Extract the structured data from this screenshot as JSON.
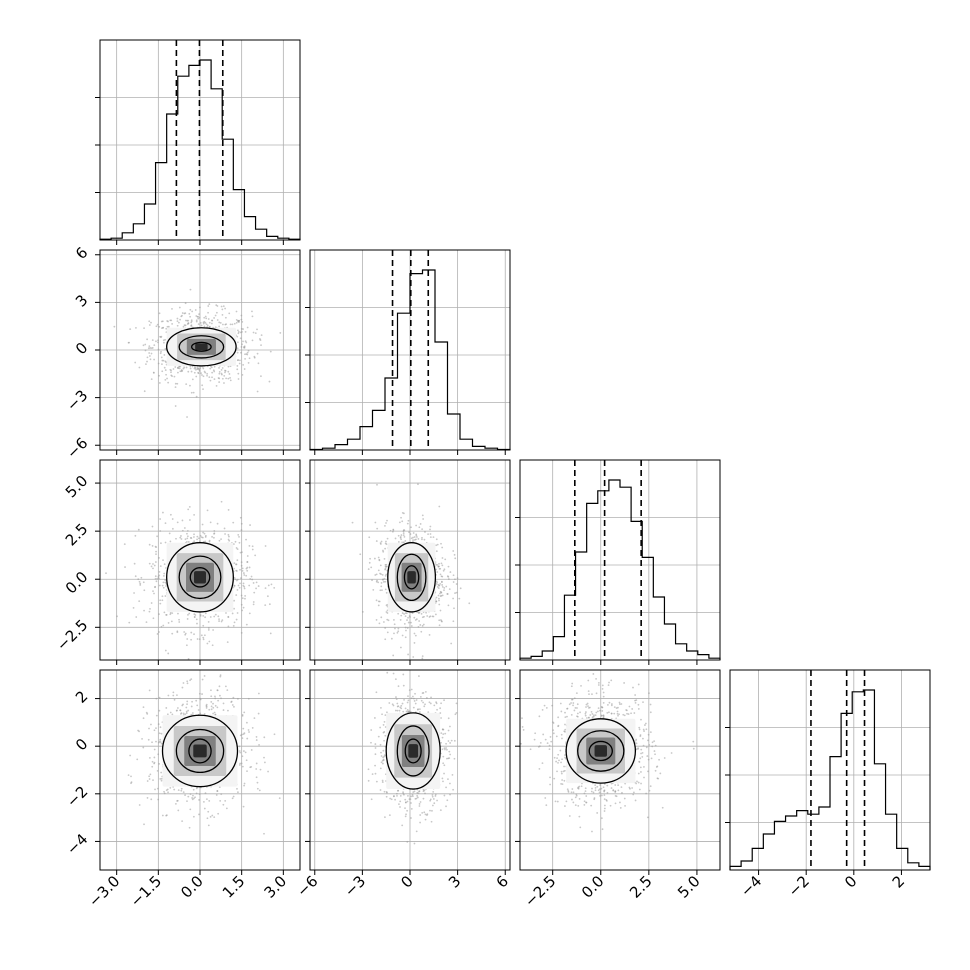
{
  "chart_data": {
    "type": "corner",
    "grid": true,
    "colors": {
      "line": "#000000",
      "grid": "#b0b0b0",
      "scatter": "#9a9a9a",
      "background": "#ffffff"
    },
    "params": [
      {
        "range": [
          -3.6,
          3.6
        ],
        "ticks": [
          -3.0,
          -1.5,
          0.0,
          1.5,
          3.0
        ],
        "tick_labels": [
          "−3.0",
          "−1.5",
          "0.0",
          "1.5",
          "3.0"
        ],
        "quantiles": [
          -0.85,
          -0.02,
          0.82
        ],
        "hist": [
          0.004,
          0.01,
          0.04,
          0.09,
          0.2,
          0.43,
          0.7,
          0.91,
          0.97,
          1.0,
          0.84,
          0.56,
          0.28,
          0.13,
          0.06,
          0.02,
          0.01,
          0.004
        ],
        "center": 0.0,
        "sd": 0.9
      },
      {
        "range": [
          -6.3,
          6.3
        ],
        "ticks": [
          -6,
          -3,
          0,
          3,
          6
        ],
        "tick_labels": [
          "−6",
          "−3",
          "0",
          "3",
          "6"
        ],
        "quantiles": [
          -1.1,
          0.05,
          1.15
        ],
        "hist": [
          0.003,
          0.01,
          0.03,
          0.06,
          0.13,
          0.22,
          0.4,
          0.76,
          0.98,
          1.0,
          0.6,
          0.2,
          0.06,
          0.02,
          0.01,
          0.003
        ],
        "center": 0.05,
        "sd": 1.1
      },
      {
        "range": [
          -4.2,
          6.2
        ],
        "ticks": [
          -2.5,
          0.0,
          2.5,
          5.0
        ],
        "tick_labels": [
          "−2.5",
          "0.0",
          "2.5",
          "5.0"
        ],
        "quantiles": [
          -1.35,
          0.2,
          2.1
        ],
        "hist": [
          0.01,
          0.02,
          0.05,
          0.13,
          0.36,
          0.6,
          0.87,
          0.94,
          1.0,
          0.96,
          0.77,
          0.57,
          0.35,
          0.2,
          0.09,
          0.05,
          0.03,
          0.01
        ],
        "center": 0.2,
        "sd": 1.35
      },
      {
        "range": [
          -5.2,
          3.2
        ],
        "ticks": [
          -4,
          -2,
          0,
          2
        ],
        "tick_labels": [
          "−4",
          "−2",
          "0",
          "2"
        ],
        "quantiles": [
          -1.8,
          -0.3,
          0.45
        ],
        "hist": [
          0.02,
          0.05,
          0.12,
          0.2,
          0.27,
          0.3,
          0.33,
          0.31,
          0.35,
          0.63,
          0.87,
          0.99,
          1.0,
          0.59,
          0.31,
          0.12,
          0.04,
          0.02
        ],
        "center": -0.3,
        "sd": 1.15
      }
    ],
    "panels_2d": [
      {
        "row": 1,
        "col": 0,
        "center": [
          0.05,
          0.2
        ],
        "radii": [
          [
            0.35,
            0.28
          ],
          [
            0.8,
            0.7
          ],
          [
            1.25,
            1.2
          ]
        ]
      },
      {
        "row": 2,
        "col": 0,
        "center": [
          0.0,
          0.1
        ],
        "radii": [
          [
            0.35,
            0.5
          ],
          [
            0.75,
            1.1
          ],
          [
            1.2,
            1.8
          ]
        ]
      },
      {
        "row": 2,
        "col": 1,
        "center": [
          0.1,
          0.1
        ],
        "radii": [
          [
            0.45,
            0.6
          ],
          [
            0.9,
            1.2
          ],
          [
            1.5,
            1.8
          ]
        ]
      },
      {
        "row": 3,
        "col": 0,
        "center": [
          0.0,
          -0.2
        ],
        "radii": [
          [
            0.4,
            0.5
          ],
          [
            0.85,
            0.9
          ],
          [
            1.35,
            1.5
          ]
        ]
      },
      {
        "row": 3,
        "col": 1,
        "center": [
          0.2,
          -0.2
        ],
        "radii": [
          [
            0.5,
            0.5
          ],
          [
            1.0,
            1.05
          ],
          [
            1.7,
            1.6
          ]
        ]
      },
      {
        "row": 3,
        "col": 2,
        "center": [
          0.0,
          -0.2
        ],
        "radii": [
          [
            0.6,
            0.4
          ],
          [
            1.2,
            0.85
          ],
          [
            1.8,
            1.35
          ]
        ]
      }
    ]
  }
}
